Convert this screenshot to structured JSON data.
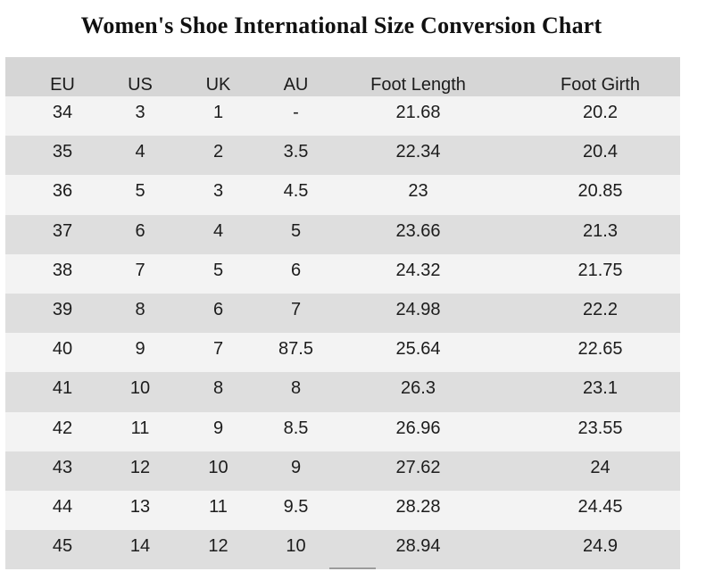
{
  "title": "Women's Shoe International Size Conversion Chart",
  "chart_data": {
    "type": "table",
    "title": "Women's Shoe International Size Conversion Chart",
    "columns": [
      "EU",
      "US",
      "UK",
      "AU",
      "Foot Length",
      "Foot Girth"
    ],
    "rows": [
      [
        "34",
        "3",
        "1",
        "-",
        "21.68",
        "20.2"
      ],
      [
        "35",
        "4",
        "2",
        "3.5",
        "22.34",
        "20.4"
      ],
      [
        "36",
        "5",
        "3",
        "4.5",
        "23",
        "20.85"
      ],
      [
        "37",
        "6",
        "4",
        "5",
        "23.66",
        "21.3"
      ],
      [
        "38",
        "7",
        "5",
        "6",
        "24.32",
        "21.75"
      ],
      [
        "39",
        "8",
        "6",
        "7",
        "24.98",
        "22.2"
      ],
      [
        "40",
        "9",
        "7",
        "87.5",
        "25.64",
        "22.65"
      ],
      [
        "41",
        "10",
        "8",
        "8",
        "26.3",
        "23.1"
      ],
      [
        "42",
        "11",
        "9",
        "8.5",
        "26.96",
        "23.55"
      ],
      [
        "43",
        "12",
        "10",
        "9",
        "27.62",
        "24"
      ],
      [
        "44",
        "13",
        "11",
        "9.5",
        "28.28",
        "24.45"
      ],
      [
        "45",
        "14",
        "12",
        "10",
        "28.94",
        "24.9"
      ]
    ]
  },
  "colors": {
    "header_bg": "#d6d6d6",
    "row_light": "#f3f3f3",
    "row_dark": "#dedede",
    "text": "#1c1c1c"
  }
}
